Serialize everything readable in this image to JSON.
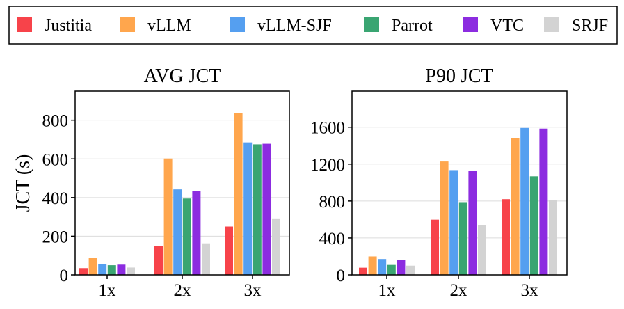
{
  "series_legend": [
    {
      "name": "Justitia",
      "color": "#f7434a"
    },
    {
      "name": "vLLM",
      "color": "#ffa64d"
    },
    {
      "name": "vLLM-SJF",
      "color": "#559ff0"
    },
    {
      "name": "Parrot",
      "color": "#3aa572"
    },
    {
      "name": "VTC",
      "color": "#8c2ce0"
    },
    {
      "name": "SRJF",
      "color": "#d3d3d3"
    }
  ],
  "chart_data": [
    {
      "type": "bar",
      "title": "AVG JCT",
      "ylabel": "JCT (s)",
      "xlabel": "",
      "categories": [
        "1x",
        "2x",
        "3x"
      ],
      "ylim": [
        0,
        950
      ],
      "yticks": [
        0,
        200,
        400,
        600,
        800
      ],
      "grid": true,
      "series": [
        {
          "name": "Justitia",
          "values": [
            35,
            148,
            250
          ]
        },
        {
          "name": "vLLM",
          "values": [
            88,
            602,
            835
          ]
        },
        {
          "name": "vLLM-SJF",
          "values": [
            55,
            442,
            685
          ]
        },
        {
          "name": "Parrot",
          "values": [
            50,
            395,
            675
          ]
        },
        {
          "name": "VTC",
          "values": [
            53,
            432,
            678
          ]
        },
        {
          "name": "SRJF",
          "values": [
            38,
            163,
            292
          ]
        }
      ]
    },
    {
      "type": "bar",
      "title": "P90 JCT",
      "ylabel": "",
      "xlabel": "",
      "categories": [
        "1x",
        "2x",
        "3x"
      ],
      "ylim": [
        0,
        1990
      ],
      "yticks": [
        0,
        400,
        800,
        1200,
        1600
      ],
      "grid": true,
      "series": [
        {
          "name": "Justitia",
          "values": [
            78,
            598,
            820
          ]
        },
        {
          "name": "vLLM",
          "values": [
            200,
            1228,
            1480
          ]
        },
        {
          "name": "vLLM-SJF",
          "values": [
            172,
            1135,
            1592
          ]
        },
        {
          "name": "Parrot",
          "values": [
            108,
            788,
            1068
          ]
        },
        {
          "name": "VTC",
          "values": [
            162,
            1125,
            1585
          ]
        },
        {
          "name": "SRJF",
          "values": [
            100,
            538,
            810
          ]
        }
      ]
    }
  ]
}
